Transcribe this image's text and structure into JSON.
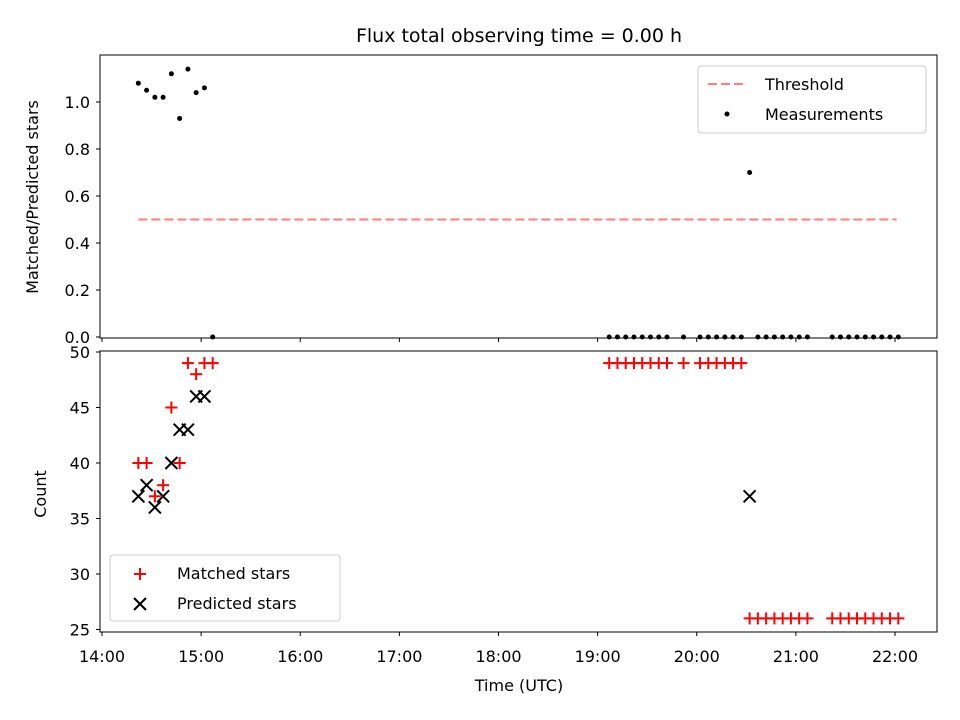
{
  "chart_data": [
    {
      "type": "scatter",
      "title": "Flux total observing time = 0.00 h",
      "xlabel": "",
      "ylabel": "Matched/Predicted stars",
      "ylim": [
        0,
        1.2
      ],
      "yticks": [
        "0.0",
        "0.2",
        "0.4",
        "0.6",
        "0.8",
        "1.0"
      ],
      "legend_position": "top-right",
      "series": [
        {
          "name": "Threshold",
          "style": "dashed-line",
          "color": "#ff7f7f",
          "x": [
            "14:22",
            "22:01"
          ],
          "y": [
            0.5,
            0.5
          ]
        },
        {
          "name": "Measurements",
          "style": "dot",
          "color": "#000000",
          "x": [
            "14:22",
            "14:27",
            "14:32",
            "14:37",
            "14:42",
            "14:47",
            "14:52",
            "14:57",
            "15:02",
            "15:07",
            "19:07",
            "19:12",
            "19:17",
            "19:22",
            "19:27",
            "19:32",
            "19:37",
            "19:42",
            "19:52",
            "20:02",
            "20:07",
            "20:12",
            "20:17",
            "20:22",
            "20:27",
            "20:32",
            "20:37",
            "20:42",
            "20:47",
            "20:52",
            "20:57",
            "21:02",
            "21:07",
            "21:22",
            "21:27",
            "21:32",
            "21:37",
            "21:42",
            "21:47",
            "21:52",
            "21:57",
            "22:02"
          ],
          "y": [
            1.08,
            1.05,
            1.02,
            1.02,
            1.12,
            0.93,
            1.14,
            1.04,
            1.06,
            0.0,
            0.0,
            0.0,
            0.0,
            0.0,
            0.0,
            0.0,
            0.0,
            0.0,
            0.0,
            0.0,
            0.0,
            0.0,
            0.0,
            0.0,
            0.0,
            0.7,
            0.0,
            0.0,
            0.0,
            0.0,
            0.0,
            0.0,
            0.0,
            0.0,
            0.0,
            0.0,
            0.0,
            0.0,
            0.0,
            0.0,
            0.0,
            0.0
          ]
        }
      ]
    },
    {
      "type": "scatter",
      "title": "",
      "xlabel": "Time (UTC)",
      "ylabel": "Count",
      "ylim": [
        25,
        50
      ],
      "yticks": [
        "25",
        "30",
        "35",
        "40",
        "45",
        "50"
      ],
      "xticks": [
        "14:00",
        "15:00",
        "16:00",
        "17:00",
        "18:00",
        "19:00",
        "20:00",
        "21:00",
        "22:00"
      ],
      "legend_position": "lower-left",
      "series": [
        {
          "name": "Matched stars",
          "marker": "plus",
          "color": "#ff0000",
          "x": [
            "14:22",
            "14:27",
            "14:32",
            "14:37",
            "14:42",
            "14:47",
            "14:52",
            "14:57",
            "15:02",
            "15:07",
            "19:07",
            "19:12",
            "19:17",
            "19:22",
            "19:27",
            "19:32",
            "19:37",
            "19:42",
            "19:52",
            "20:02",
            "20:07",
            "20:12",
            "20:17",
            "20:22",
            "20:27",
            "20:32",
            "20:37",
            "20:42",
            "20:47",
            "20:52",
            "20:57",
            "21:02",
            "21:07",
            "21:22",
            "21:27",
            "21:32",
            "21:37",
            "21:42",
            "21:47",
            "21:52",
            "21:57",
            "22:02"
          ],
          "y": [
            40,
            40,
            37,
            38,
            45,
            40,
            49,
            48,
            49,
            49,
            49,
            49,
            49,
            49,
            49,
            49,
            49,
            49,
            49,
            49,
            49,
            49,
            49,
            49,
            49,
            26,
            26,
            26,
            26,
            26,
            26,
            26,
            26,
            26,
            26,
            26,
            26,
            26,
            26,
            26,
            26,
            26
          ]
        },
        {
          "name": "Predicted stars",
          "marker": "x",
          "color": "#000000",
          "x": [
            "14:22",
            "14:27",
            "14:32",
            "14:37",
            "14:42",
            "14:47",
            "14:52",
            "14:57",
            "15:02",
            "20:32"
          ],
          "y": [
            37,
            38,
            36,
            37,
            40,
            43,
            43,
            46,
            46,
            37
          ]
        }
      ]
    }
  ]
}
